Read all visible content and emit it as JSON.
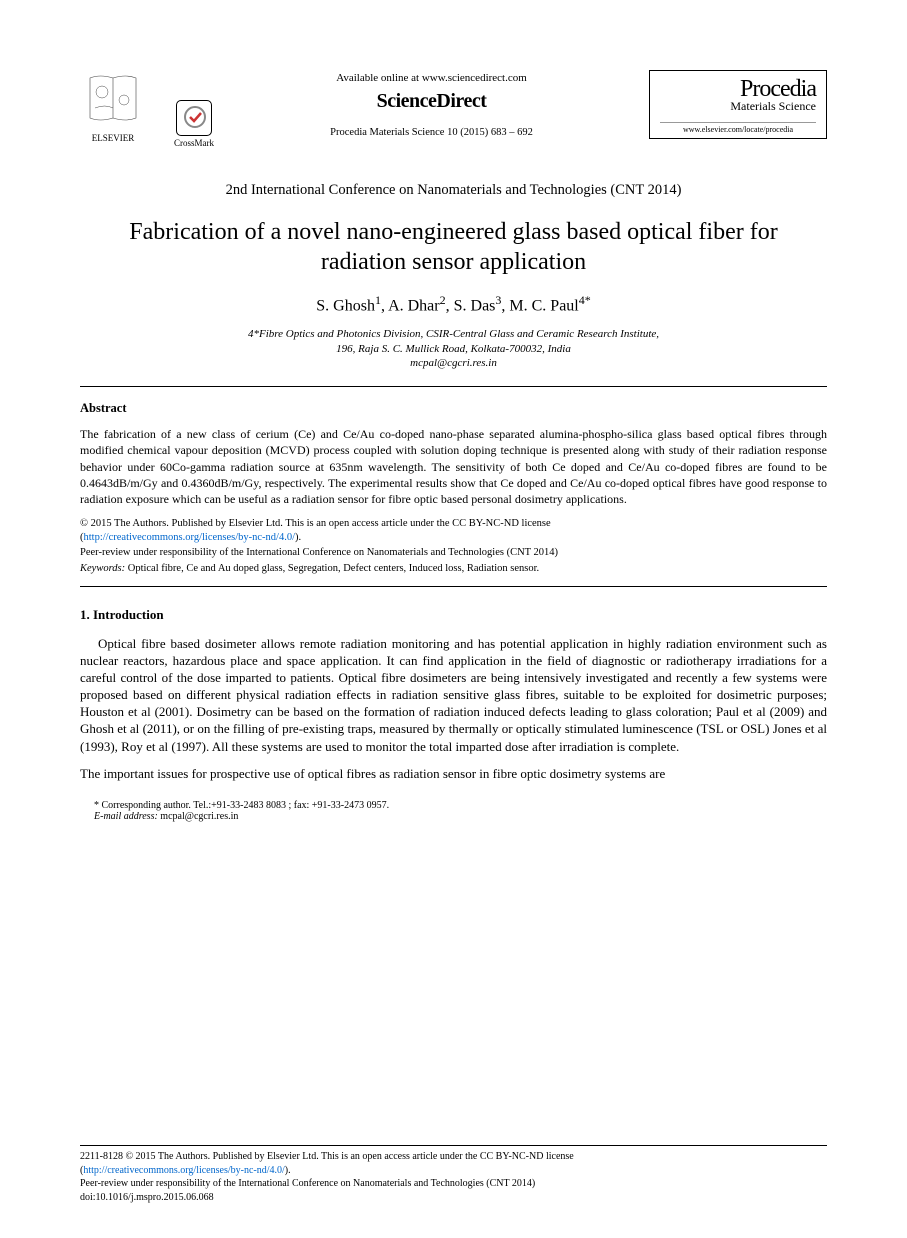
{
  "header": {
    "available_line": "Available online at www.sciencedirect.com",
    "sd_brand": "ScienceDirect",
    "journal_ref": "Procedia Materials Science 10 (2015) 683 – 692",
    "crossmark_label": "CrossMark",
    "procedia_title": "Procedia",
    "procedia_sub": "Materials Science",
    "procedia_url": "www.elsevier.com/locate/procedia"
  },
  "conference": "2nd International Conference on Nanomaterials and Technologies (CNT 2014)",
  "title": "Fabrication of a novel nano-engineered glass based optical fiber for radiation sensor application",
  "authors_html": "S. Ghosh<sup>1</sup>, A. Dhar<sup>2</sup>, S. Das<sup>3</sup>, M. C. Paul<sup>4*</sup>",
  "affiliation": {
    "line1": "4*Fibre Optics and Photonics Division, CSIR-Central Glass and Ceramic Research Institute,",
    "line2": "196, Raja S. C. Mullick Road, Kolkata-700032, India",
    "email": "mcpal@cgcri.res.in"
  },
  "abstract": {
    "heading": "Abstract",
    "body": "The fabrication of a new class of cerium (Ce) and Ce/Au co-doped nano-phase separated alumina-phospho-silica glass based optical fibres through modified chemical vapour deposition (MCVD) process coupled with solution doping technique is presented along with study of their radiation response behavior under 60Co-gamma radiation source at 635nm wavelength. The sensitivity of both Ce doped and Ce/Au co-doped fibres are found to be 0.4643dB/m/Gy and 0.4360dB/m/Gy, respectively. The experimental results show that Ce doped and Ce/Au co-doped optical fibres have good response to radiation exposure which can be useful as a radiation sensor for fibre optic based personal dosimetry applications."
  },
  "copyright": {
    "line1": "© 2015 The Authors. Published by Elsevier Ltd. This is an open access article under the CC BY-NC-ND license",
    "license_url_text": "http://creativecommons.org/licenses/by-nc-nd/4.0/",
    "peer_review": "Peer-review under responsibility of the International Conference on Nanomaterials and Technologies (CNT 2014)"
  },
  "keywords": {
    "label": "Keywords:",
    "text": " Optical fibre, Ce and Au doped glass, Segregation, Defect centers, Induced loss, Radiation sensor."
  },
  "intro": {
    "heading": "1.   Introduction",
    "p1": "Optical fibre based dosimeter allows remote radiation monitoring and has potential application in highly radiation environment such as nuclear reactors, hazardous place and space application. It can find application in the field of diagnostic or radiotherapy irradiations for a careful control of the dose imparted to patients. Optical fibre dosimeters are being intensively investigated and recently a few systems were proposed based on different physical radiation effects in radiation sensitive glass fibres, suitable to be exploited for dosimetric purposes; Houston et al (2001). Dosimetry can be based on the formation of radiation induced defects leading to glass coloration; Paul et al (2009) and Ghosh et al (2011), or on the filling of pre-existing traps, measured by thermally or optically stimulated luminescence (TSL or OSL) Jones et al (1993), Roy et al (1997). All these systems are used to monitor the total imparted dose after irradiation is complete.",
    "p2": "The important issues for prospective use of optical fibres as radiation sensor in fibre optic dosimetry systems are"
  },
  "corresponding": {
    "line": "* Corresponding author. Tel.:+91-33-2483 8083 ; fax: +91-33-2473 0957.",
    "email_label": "E-mail address:",
    "email": " mcpal@cgcri.res.in"
  },
  "footer": {
    "issn_line": "2211-8128 © 2015 The Authors. Published by Elsevier Ltd. This is an open access article under the CC BY-NC-ND license",
    "license_url_text": "http://creativecommons.org/licenses/by-nc-nd/4.0/",
    "peer_review": "Peer-review under responsibility of the International Conference on Nanomaterials and Technologies (CNT 2014)",
    "doi": "doi:10.1016/j.mspro.2015.06.068"
  },
  "colors": {
    "text": "#000000",
    "link": "#0066cc",
    "background": "#ffffff"
  }
}
